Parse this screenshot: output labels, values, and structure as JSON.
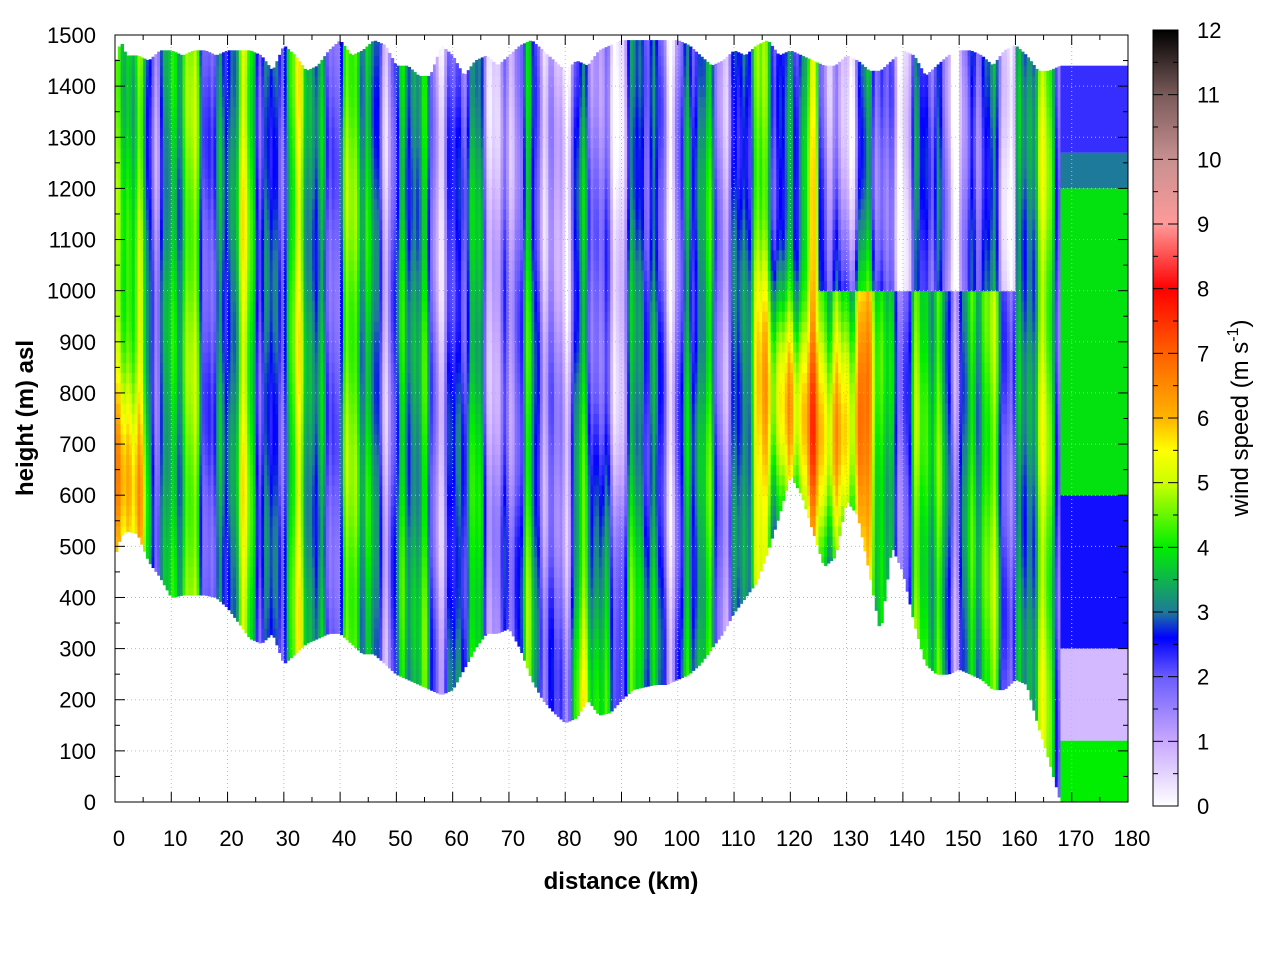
{
  "chart_data": {
    "type": "heatmap",
    "title": "",
    "xlabel": "distance (km)",
    "ylabel": "height (m) asl",
    "xlim": [
      0,
      180
    ],
    "ylim": [
      0,
      1500
    ],
    "x_ticks": [
      "0",
      "10",
      "20",
      "30",
      "40",
      "50",
      "60",
      "70",
      "80",
      "90",
      "100",
      "110",
      "120",
      "130",
      "140",
      "150",
      "160",
      "170",
      "180"
    ],
    "y_ticks": [
      "0",
      "100",
      "200",
      "300",
      "400",
      "500",
      "600",
      "700",
      "800",
      "900",
      "1000",
      "1100",
      "1200",
      "1300",
      "1400",
      "1500"
    ],
    "grid": true,
    "colorbar": {
      "label": "wind speed (m s",
      "label_sup": "-1",
      "label_close": ")",
      "range": [
        0,
        12
      ],
      "ticks": [
        "0",
        "1",
        "2",
        "3",
        "4",
        "5",
        "6",
        "7",
        "8",
        "9",
        "10",
        "11",
        "12"
      ],
      "placement": "right",
      "colormap": [
        {
          "v": 0,
          "color": "#ffffff"
        },
        {
          "v": 1,
          "color": "#c8a8ff"
        },
        {
          "v": 2,
          "color": "#6a5cff"
        },
        {
          "v": 2.6,
          "color": "#0000ff"
        },
        {
          "v": 3,
          "color": "#1e7a9a"
        },
        {
          "v": 4,
          "color": "#00ee00"
        },
        {
          "v": 5,
          "color": "#ccff00"
        },
        {
          "v": 5.5,
          "color": "#ffff00"
        },
        {
          "v": 6,
          "color": "#ffb400"
        },
        {
          "v": 7,
          "color": "#ff6000"
        },
        {
          "v": 8,
          "color": "#ff0000"
        },
        {
          "v": 9,
          "color": "#ff9a9a"
        },
        {
          "v": 10,
          "color": "#c89090"
        },
        {
          "v": 11,
          "color": "#7a5a5a"
        },
        {
          "v": 12,
          "color": "#000000"
        }
      ]
    },
    "terrain": {
      "x": [
        0,
        1,
        2,
        4,
        6,
        8,
        10,
        12,
        14,
        16,
        18,
        20,
        22,
        24,
        26,
        28,
        30,
        32,
        34,
        36,
        38,
        40,
        42,
        44,
        46,
        48,
        50,
        52,
        54,
        56,
        58,
        60,
        62,
        64,
        66,
        68,
        70,
        72,
        74,
        76,
        78,
        80,
        82,
        84,
        86,
        88,
        90,
        92,
        94,
        96,
        98,
        100,
        102,
        104,
        106,
        108,
        110,
        112,
        114,
        116,
        118,
        120,
        122,
        124,
        126,
        128,
        130,
        132,
        134,
        136,
        138,
        140,
        142,
        144,
        146,
        148,
        150,
        152,
        154,
        156,
        158,
        160,
        162,
        164,
        166,
        168,
        170,
        172,
        174,
        176,
        178,
        180
      ],
      "y": [
        480,
        520,
        530,
        525,
        470,
        440,
        400,
        405,
        405,
        405,
        400,
        380,
        350,
        320,
        310,
        330,
        270,
        290,
        310,
        320,
        330,
        330,
        310,
        290,
        290,
        270,
        250,
        240,
        230,
        220,
        210,
        220,
        260,
        300,
        330,
        330,
        340,
        300,
        240,
        200,
        175,
        155,
        165,
        200,
        170,
        175,
        200,
        220,
        225,
        230,
        230,
        240,
        250,
        270,
        300,
        330,
        370,
        400,
        430,
        490,
        560,
        640,
        600,
        530,
        460,
        480,
        590,
        560,
        450,
        330,
        500,
        450,
        350,
        270,
        250,
        250,
        260,
        250,
        240,
        220,
        220,
        240,
        230,
        150,
        80,
        0,
        0,
        0,
        0,
        0,
        0,
        0
      ]
    },
    "top_edge": {
      "x": [
        0,
        1,
        2,
        4,
        6,
        8,
        10,
        12,
        14,
        16,
        18,
        20,
        22,
        24,
        26,
        28,
        30,
        32,
        34,
        36,
        38,
        40,
        42,
        44,
        46,
        48,
        50,
        52,
        54,
        56,
        58,
        60,
        62,
        64,
        66,
        68,
        70,
        72,
        74,
        76,
        78,
        80,
        82,
        84,
        86,
        88,
        90,
        92,
        94,
        96,
        98,
        100,
        102,
        104,
        106,
        108,
        110,
        112,
        114,
        116,
        118,
        120,
        122,
        124,
        126,
        128,
        130,
        132,
        134,
        136,
        138,
        140,
        142,
        144,
        146,
        148,
        150,
        152,
        154,
        156,
        158,
        160,
        162,
        164,
        166,
        168,
        170,
        172,
        174,
        176,
        178,
        180
      ],
      "y": [
        1440,
        1490,
        1460,
        1460,
        1450,
        1470,
        1470,
        1460,
        1470,
        1470,
        1460,
        1470,
        1470,
        1470,
        1460,
        1430,
        1480,
        1460,
        1430,
        1440,
        1470,
        1490,
        1460,
        1470,
        1490,
        1480,
        1440,
        1440,
        1420,
        1420,
        1480,
        1460,
        1420,
        1450,
        1460,
        1440,
        1460,
        1480,
        1490,
        1470,
        1450,
        1430,
        1450,
        1440,
        1470,
        1480,
        1490,
        1490,
        1490,
        1490,
        1490,
        1490,
        1480,
        1460,
        1440,
        1450,
        1470,
        1460,
        1480,
        1490,
        1460,
        1470,
        1460,
        1450,
        1440,
        1440,
        1460,
        1450,
        1430,
        1430,
        1450,
        1470,
        1460,
        1420,
        1440,
        1460,
        1470,
        1470,
        1460,
        1440,
        1470,
        1480,
        1460,
        1430,
        1430,
        1440,
        1440,
        1440,
        1440,
        1440,
        1440,
        1440
      ]
    },
    "field_description": {
      "notable_maxima": [
        {
          "x": 130,
          "y": 750,
          "value": 7.5
        },
        {
          "x": 119,
          "y": 760,
          "value": 7.0
        },
        {
          "x": 2,
          "y": 640,
          "value": 6.0
        },
        {
          "x": 87,
          "y": 260,
          "value": 5.6
        }
      ],
      "right_block": {
        "x_from": 168,
        "x_to": 180,
        "layers": [
          {
            "y_from": 0,
            "y_to": 120,
            "value": 4.0
          },
          {
            "y_from": 120,
            "y_to": 300,
            "value": 0.8
          },
          {
            "y_from": 300,
            "y_to": 600,
            "value": 2.5
          },
          {
            "y_from": 600,
            "y_to": 1200,
            "value": 3.9
          },
          {
            "y_from": 1200,
            "y_to": 1270,
            "value": 3.0
          },
          {
            "y_from": 1270,
            "y_to": 1440,
            "value": 2.3
          }
        ]
      }
    }
  }
}
